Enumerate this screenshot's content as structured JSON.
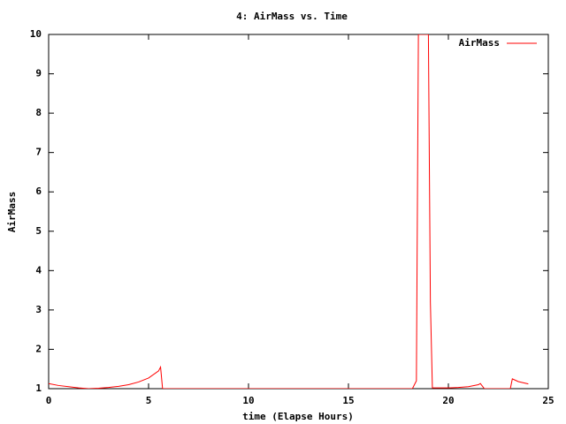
{
  "chart_data": {
    "type": "line",
    "title": "4: AirMass vs. Time",
    "x_label": "time (Elapse Hours)",
    "y_label": "AirMass",
    "x": [
      0,
      0.5,
      1,
      1.5,
      2,
      2.5,
      3,
      3.5,
      4,
      4.5,
      5,
      5.5,
      5.6,
      5.7,
      18.2,
      18.4,
      18.5,
      18.6,
      18.9,
      19.0,
      19.1,
      19.2,
      20,
      20.5,
      21,
      21.5,
      21.6,
      21.8,
      23.1,
      23.2,
      23.5,
      24
    ],
    "series": [
      {
        "name": "AirMass",
        "color": "#ff0000",
        "values": [
          1.13,
          1.08,
          1.05,
          1.02,
          1.0,
          1.01,
          1.03,
          1.06,
          1.1,
          1.17,
          1.27,
          1.45,
          1.55,
          1,
          1,
          1.2,
          10,
          10,
          10,
          10,
          3.2,
          1.02,
          1.02,
          1.03,
          1.05,
          1.1,
          1.13,
          1,
          1,
          1.25,
          1.18,
          1.12
        ]
      }
    ],
    "xlim": [
      0,
      25
    ],
    "xticks": [
      0,
      5,
      10,
      15,
      20,
      25
    ],
    "ylim": [
      1,
      10
    ],
    "yticks": [
      1,
      2,
      3,
      4,
      5,
      6,
      7,
      8,
      9,
      10
    ],
    "legend": "top-right"
  }
}
